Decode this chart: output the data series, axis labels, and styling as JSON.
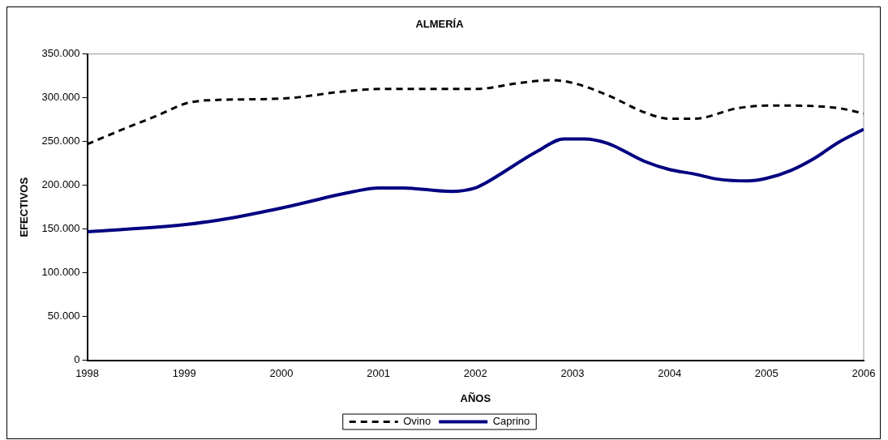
{
  "chart_data": {
    "type": "line",
    "title": "ALMERÍA",
    "xlabel": "AÑOS",
    "ylabel": "EFECTIVOS",
    "xlim": [
      1998,
      2006
    ],
    "xticks": [
      1998,
      1999,
      2000,
      2001,
      2002,
      2003,
      2004,
      2005,
      2006
    ],
    "ylim": [
      0,
      350000
    ],
    "yticks": [
      0,
      {
        "value": 50000,
        "label": "50.000"
      },
      {
        "value": 100000,
        "label": "100.000"
      },
      {
        "value": 150000,
        "label": "150.000"
      },
      {
        "value": 200000,
        "label": "200.000"
      },
      {
        "value": 250000,
        "label": "250.000"
      },
      {
        "value": 300000,
        "label": "300.000"
      },
      {
        "value": 350000,
        "label": "350.000"
      }
    ],
    "grid": false,
    "legend": "bottom",
    "marker": "none",
    "series": [
      {
        "name": "Ovino",
        "color": "#000000",
        "line_style": "dashed",
        "x": [
          1998,
          1998.39,
          1998.75,
          1999,
          1999.23,
          2000,
          2000.63,
          2001,
          2002,
          2002.46,
          2002.78,
          2003,
          2003.36,
          2003.75,
          2004,
          2004.25,
          2004.7,
          2005,
          2005.25,
          2005.75,
          2006
        ],
        "values": [
          247000,
          265000,
          281000,
          293000,
          297000,
          299000,
          307000,
          310000,
          310000,
          317000,
          320000,
          317000,
          303000,
          283000,
          276000,
          276000,
          288000,
          291000,
          291000,
          288000,
          282000
        ]
      },
      {
        "name": "Caprino",
        "color": "#000080",
        "line_style": "solid",
        "x": [
          1998,
          1999,
          1999.5,
          2000,
          2000.75,
          2001,
          2001.25,
          2001.75,
          2002,
          2002.11,
          2002.64,
          2002.91,
          2003.12,
          2003.36,
          2003.75,
          2004,
          2004.25,
          2004.5,
          2004.8,
          2005,
          2005.25,
          2005.48,
          2005.74,
          2006
        ],
        "values": [
          147000,
          155000,
          163000,
          174000,
          193000,
          197000,
          197000,
          193000,
          197000,
          203000,
          239000,
          253000,
          253000,
          248000,
          227000,
          218000,
          213000,
          207000,
          205000,
          208000,
          217000,
          230000,
          249000,
          264000
        ]
      }
    ]
  }
}
